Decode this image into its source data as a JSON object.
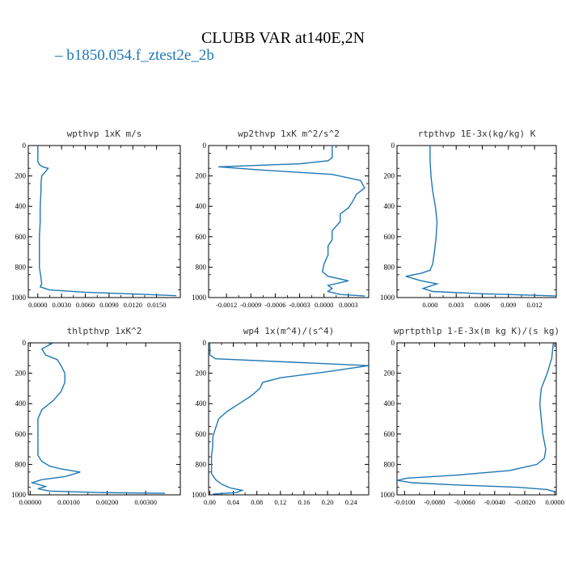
{
  "figure": {
    "title": "CLUBB VAR at140E,2N",
    "legend_label": "b1850.054.f_ztest2e_2b",
    "line_color": "#1f77b4"
  },
  "chart_data": [
    {
      "type": "line",
      "title": "wpthvp   1xK m/s",
      "xlim": [
        -0.0012,
        0.018
      ],
      "xticks": [
        0,
        0.003,
        0.006,
        0.009,
        0.012,
        0.015
      ],
      "xticklabels": [
        "0.0000",
        "0.0030",
        "0.0060",
        "0.0090",
        "0.0120",
        "0.0150"
      ],
      "ylim": [
        1000,
        0
      ],
      "yticks": [
        0,
        200,
        400,
        600,
        800,
        1000
      ],
      "series": [
        {
          "x": [
            0,
            0,
            0.0002,
            0.0006,
            0.0013,
            0.001,
            0.0005,
            0.0004,
            0.0004,
            0.0003,
            0.0003,
            0.0002,
            0.0002,
            0.0002,
            0.0004,
            0.0005,
            0.0003,
            0.0015,
            0.006,
            0.013,
            0.0175
          ],
          "y": [
            0,
            105,
            125,
            140,
            150,
            170,
            200,
            250,
            300,
            400,
            500,
            600,
            700,
            800,
            870,
            910,
            930,
            950,
            965,
            978,
            988
          ]
        }
      ]
    },
    {
      "type": "line",
      "title": "wp2thvp   1xK m^2/s^2",
      "xlim": [
        -0.00142,
        0.00055
      ],
      "xticks": [
        -0.0012,
        -0.0009,
        -0.0006,
        -0.0003,
        0,
        0.0003
      ],
      "xticklabels": [
        "-0.0012",
        "-0.0009",
        "-0.0006",
        "-0.0003",
        "0.0000",
        "0.0003"
      ],
      "ylim": [
        1000,
        0
      ],
      "yticks": [
        0,
        200,
        400,
        600,
        800,
        1000
      ],
      "series": [
        {
          "x": [
            0.0001,
            0.0001,
            5e-05,
            -0.0003,
            -0.0013,
            -0.0008,
            0.0001,
            0.00045,
            0.0005,
            0.0004,
            0.00035,
            0.0003,
            0.0002,
            0.0002,
            0.0001,
            0.0001,
            5e-05,
            5e-05,
            0,
            -2e-05,
            5e-05,
            0.0003,
            5e-05,
            0.0001,
            5e-05,
            0.0002,
            0.0005
          ],
          "y": [
            0,
            80,
            100,
            120,
            140,
            160,
            190,
            230,
            280,
            320,
            370,
            410,
            450,
            500,
            560,
            620,
            660,
            720,
            780,
            830,
            860,
            890,
            920,
            940,
            960,
            980,
            990
          ]
        }
      ]
    },
    {
      "type": "line",
      "title": "rtpthvp   1E-3x(kg/kg) K",
      "xlim": [
        -0.0038,
        0.0145
      ],
      "xticks": [
        0,
        0.003,
        0.006,
        0.009,
        0.012
      ],
      "xticklabels": [
        "0.000",
        "0.003",
        "0.006",
        "0.009",
        "0.012"
      ],
      "ylim": [
        1000,
        0
      ],
      "yticks": [
        0,
        200,
        400,
        600,
        800,
        1000
      ],
      "series": [
        {
          "x": [
            0,
            0,
            0.0001,
            0.0003,
            0.0006,
            0.0008,
            0.0007,
            0.0005,
            0.0003,
            0,
            -0.001,
            -0.0028,
            -0.001,
            0.0008,
            -0.0008,
            0.0003,
            0.006,
            0.012,
            0.0145
          ],
          "y": [
            0,
            100,
            200,
            300,
            400,
            500,
            600,
            700,
            780,
            820,
            840,
            860,
            890,
            910,
            940,
            960,
            975,
            985,
            990
          ]
        }
      ]
    },
    {
      "type": "line",
      "title": "thlpthvp   1xK^2",
      "xlim": [
        -5e-05,
        0.0039
      ],
      "xticks": [
        0,
        0.001,
        0.002,
        0.003
      ],
      "xticklabels": [
        "0.00000",
        "0.00100",
        "0.00200",
        "0.00300"
      ],
      "ylim": [
        1000,
        0
      ],
      "yticks": [
        0,
        200,
        400,
        600,
        800,
        1000
      ],
      "series": [
        {
          "x": [
            0.0006,
            0.0003,
            0.0004,
            0.0007,
            0.0008,
            0.0009,
            0.0009,
            0.0008,
            0.0006,
            0.0003,
            0.0002,
            0.0002,
            0.0002,
            0.0002,
            0.0003,
            0.0005,
            0.0008,
            0.0013,
            0.0009,
            0.0003,
            5e-05,
            0.0004,
            0.0002,
            0.0005,
            0.0018,
            0.0035
          ],
          "y": [
            0,
            40,
            80,
            110,
            150,
            200,
            260,
            320,
            380,
            440,
            500,
            580,
            660,
            740,
            780,
            810,
            830,
            850,
            880,
            900,
            920,
            945,
            960,
            975,
            985,
            990
          ]
        }
      ]
    },
    {
      "type": "line",
      "title": "wp4   1x(m^4)/(s^4)",
      "xlim": [
        -0.002,
        0.27
      ],
      "xticks": [
        0,
        0.04,
        0.08,
        0.12,
        0.16,
        0.2,
        0.24
      ],
      "xticklabels": [
        "0.00",
        "0.04",
        "0.08",
        "0.12",
        "0.16",
        "0.20",
        "0.24"
      ],
      "ylim": [
        1000,
        0
      ],
      "yticks": [
        0,
        200,
        400,
        600,
        800,
        1000
      ],
      "series": [
        {
          "x": [
            0,
            0,
            0.01,
            0.27,
            0.2,
            0.12,
            0.09,
            0.085,
            0.07,
            0.05,
            0.03,
            0.015,
            0.01,
            0.005,
            0.005,
            0.003,
            0.003,
            0.003,
            0.01,
            0.02,
            0.035,
            0.055,
            0.045,
            0.005
          ],
          "y": [
            0,
            80,
            105,
            150,
            190,
            230,
            260,
            300,
            350,
            400,
            450,
            500,
            560,
            620,
            680,
            740,
            800,
            860,
            900,
            930,
            955,
            970,
            985,
            995
          ]
        }
      ]
    },
    {
      "type": "line",
      "title": "wprtpthlp   1-E-3x(m kg K)/(s kg)",
      "xlim": [
        -0.0105,
        0.0001
      ],
      "xticks": [
        -0.01,
        -0.008,
        -0.006,
        -0.004,
        -0.002,
        0
      ],
      "xticklabels": [
        "-0.0100",
        "-0.0080",
        "-0.0060",
        "-0.0040",
        "-0.0020",
        "0.0000"
      ],
      "ylim": [
        1000,
        0
      ],
      "yticks": [
        0,
        200,
        400,
        600,
        800,
        1000
      ],
      "series": [
        {
          "x": [
            -0.0001,
            -0.0002,
            -0.0005,
            -0.0009,
            -0.001,
            -0.0009,
            -0.0008,
            -0.0006,
            -0.0007,
            -0.0012,
            -0.003,
            -0.0065,
            -0.0098,
            -0.0105,
            -0.0095,
            -0.0065,
            -0.0025,
            -0.0005,
            0
          ],
          "y": [
            0,
            100,
            200,
            300,
            400,
            500,
            600,
            700,
            760,
            800,
            840,
            870,
            890,
            905,
            920,
            935,
            950,
            965,
            980
          ]
        }
      ]
    }
  ]
}
